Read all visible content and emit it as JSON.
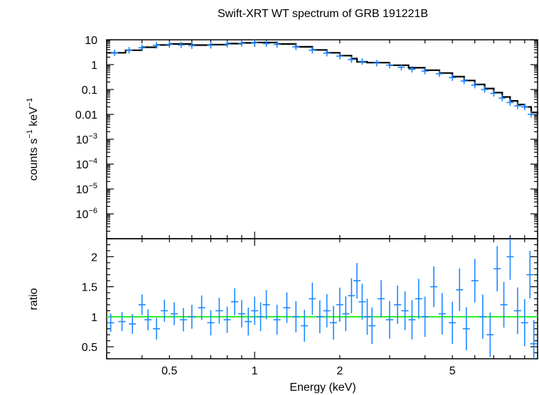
{
  "chart_data": [
    {
      "panel": "spectrum",
      "type": "scatter",
      "title": "Swift-XRT WT spectrum of GRB 191221B",
      "ylabel": {
        "base": "counts s",
        "exp1": "−1",
        "mid": " keV",
        "exp2": "−1"
      },
      "x_scale": "log",
      "y_scale": "log",
      "xlim": [
        0.3,
        10
      ],
      "ylim": [
        1e-07,
        10
      ],
      "y_ticks": [
        {
          "value": 10,
          "label": "10"
        },
        {
          "value": 1,
          "label": "1"
        },
        {
          "value": 0.1,
          "label": "0.1"
        },
        {
          "value": 0.01,
          "label": "0.01"
        },
        {
          "value": 0.001,
          "base": "10",
          "exp": "−3"
        },
        {
          "value": 0.0001,
          "base": "10",
          "exp": "−4"
        },
        {
          "value": 1e-05,
          "base": "10",
          "exp": "−5"
        },
        {
          "value": 1e-06,
          "base": "10",
          "exp": "−6"
        }
      ],
      "series": [
        {
          "kind": "data",
          "color": "#1e88ff",
          "x": [
            0.32,
            0.36,
            0.4,
            0.45,
            0.5,
            0.55,
            0.6,
            0.7,
            0.8,
            0.9,
            1.0,
            1.1,
            1.2,
            1.4,
            1.6,
            1.8,
            2.0,
            2.2,
            2.4,
            2.7,
            3.0,
            3.3,
            3.6,
            4.0,
            4.5,
            5.0,
            5.5,
            6.0,
            6.5,
            7.0,
            7.5,
            8.0,
            8.5,
            9.0,
            9.5
          ],
          "y": [
            3.0,
            3.8,
            4.8,
            6.0,
            6.5,
            6.2,
            5.8,
            6.0,
            6.7,
            7.2,
            7.5,
            7.0,
            6.5,
            5.2,
            3.8,
            2.9,
            2.2,
            1.6,
            1.35,
            1.15,
            0.95,
            0.78,
            0.65,
            0.55,
            0.43,
            0.3,
            0.22,
            0.15,
            0.1,
            0.07,
            0.045,
            0.03,
            0.022,
            0.02,
            0.01
          ]
        },
        {
          "kind": "model",
          "color": "#000000",
          "x": [
            0.3,
            0.35,
            0.4,
            0.45,
            0.5,
            0.6,
            0.7,
            0.8,
            0.9,
            1.0,
            1.2,
            1.4,
            1.6,
            1.8,
            2.0,
            2.2,
            2.3,
            2.5,
            3.0,
            3.5,
            4.0,
            4.5,
            5.0,
            5.5,
            6.0,
            6.5,
            7.0,
            7.5,
            8.0,
            8.5,
            9.0,
            9.5,
            10.0
          ],
          "y": [
            3.0,
            3.8,
            5.0,
            6.2,
            6.8,
            6.1,
            6.4,
            7.0,
            7.5,
            7.8,
            6.8,
            5.2,
            3.9,
            3.0,
            2.3,
            1.75,
            1.3,
            1.2,
            0.95,
            0.75,
            0.6,
            0.46,
            0.33,
            0.23,
            0.16,
            0.11,
            0.075,
            0.05,
            0.035,
            0.025,
            0.02,
            0.012,
            0.01
          ]
        }
      ]
    },
    {
      "panel": "ratio",
      "type": "scatter",
      "ylabel": "ratio",
      "xlabel": "Energy (keV)",
      "x_scale": "log",
      "xlim": [
        0.3,
        10
      ],
      "ylim": [
        0.3,
        2.3
      ],
      "y_ticks": [
        "0.5",
        "1",
        "1.5",
        "2"
      ],
      "x_ticks": [
        {
          "value": 0.5,
          "label": "0.5"
        },
        {
          "value": 1,
          "label": "1"
        },
        {
          "value": 2,
          "label": "2"
        },
        {
          "value": 5,
          "label": "5"
        }
      ],
      "reference_line": {
        "y": 1,
        "color": "#22ee22"
      },
      "series": [
        {
          "kind": "data",
          "color": "#1e88ff",
          "x": [
            0.31,
            0.34,
            0.37,
            0.4,
            0.42,
            0.45,
            0.48,
            0.52,
            0.56,
            0.6,
            0.65,
            0.7,
            0.75,
            0.8,
            0.85,
            0.9,
            0.95,
            1.0,
            1.05,
            1.1,
            1.2,
            1.3,
            1.4,
            1.5,
            1.6,
            1.7,
            1.8,
            1.9,
            2.0,
            2.1,
            2.2,
            2.3,
            2.4,
            2.5,
            2.6,
            2.8,
            3.0,
            3.2,
            3.4,
            3.6,
            3.8,
            4.0,
            4.3,
            4.6,
            5.0,
            5.3,
            5.6,
            6.0,
            6.4,
            6.8,
            7.2,
            7.6,
            8.0,
            8.5,
            9.0,
            9.4,
            9.7
          ],
          "y": [
            0.9,
            0.92,
            0.88,
            1.2,
            0.95,
            0.8,
            1.1,
            1.05,
            0.95,
            1.0,
            1.15,
            0.9,
            1.1,
            0.95,
            1.25,
            1.05,
            0.92,
            1.1,
            1.0,
            1.2,
            0.95,
            1.15,
            1.0,
            0.85,
            1.3,
            1.0,
            1.1,
            0.9,
            1.2,
            1.05,
            1.35,
            1.6,
            1.25,
            1.0,
            0.85,
            1.3,
            0.95,
            1.2,
            1.1,
            0.95,
            1.3,
            1.0,
            1.5,
            1.05,
            0.9,
            1.45,
            0.8,
            1.6,
            1.0,
            0.7,
            1.8,
            1.2,
            2.0,
            1.1,
            0.9,
            1.7,
            0.55
          ]
        }
      ]
    }
  ]
}
